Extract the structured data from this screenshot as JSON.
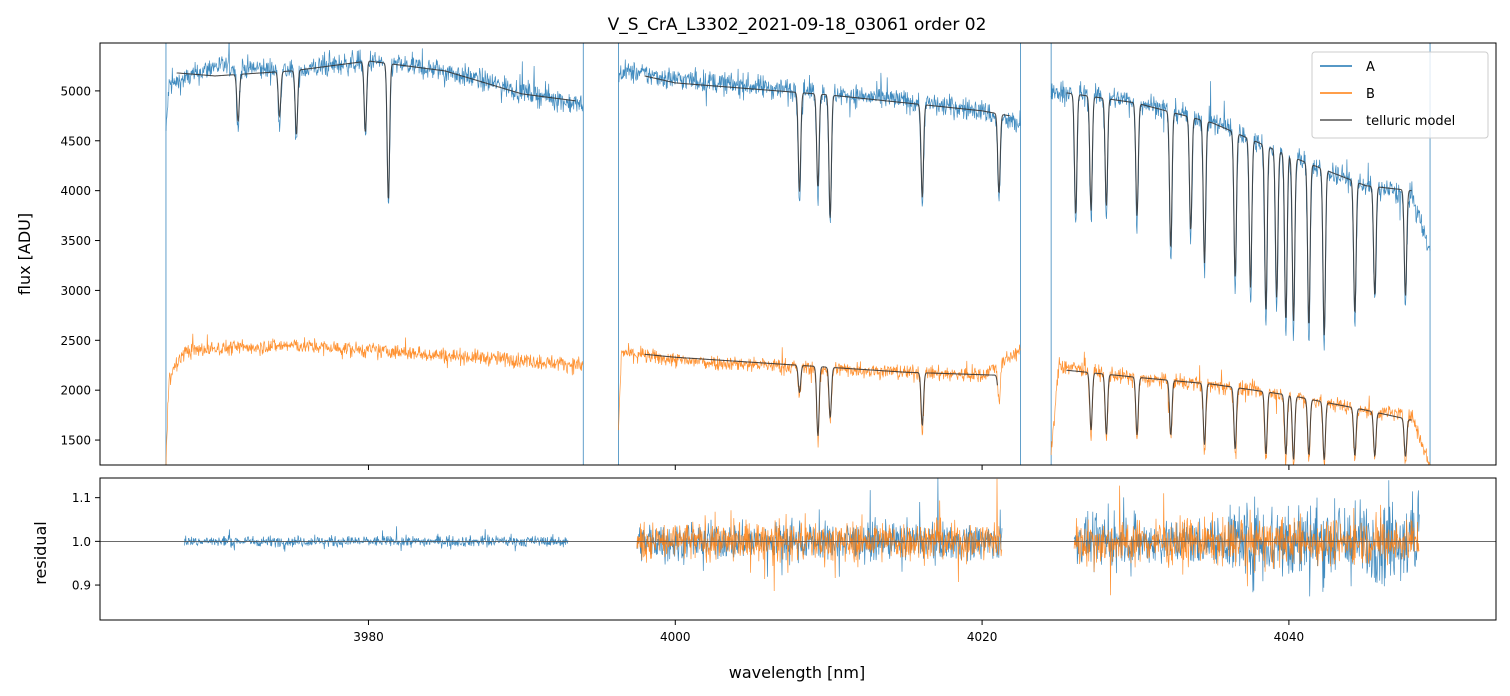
{
  "chart_data": [
    {
      "type": "line",
      "title": "V_S_CrA_L3302_2021-09-18_03061  order 02",
      "xlabel": "",
      "ylabel": "flux [ADU]",
      "xlim": [
        3962.5,
        4053.5
      ],
      "ylim": [
        1250,
        5480
      ],
      "x_ticks": [
        3980,
        4000,
        4020,
        4040
      ],
      "show_x_tick_labels": false,
      "y_ticks": [
        1500,
        2000,
        2500,
        3000,
        3500,
        4000,
        4500,
        5000
      ],
      "y_tick_labels": [
        "1500",
        "2000",
        "2500",
        "3000",
        "3500",
        "4000",
        "4500",
        "5000"
      ],
      "legend": {
        "position": "top-right",
        "entries": [
          {
            "label": "A",
            "color": "#1f77b4"
          },
          {
            "label": "B",
            "color": "#ff7f0e"
          },
          {
            "label": "telluric model",
            "color": "#555555"
          }
        ]
      },
      "series": [
        {
          "name": "A",
          "color": "#1f77b4",
          "segments": [
            {
              "x": [
                3966.8,
                3967,
                3970,
                3975,
                3980,
                3985,
                3990,
                3994
              ],
              "y": [
                4600,
                5050,
                5250,
                5200,
                5300,
                5200,
                5000,
                4850
              ]
            },
            {
              "x": [
                3996.3,
                3996.5,
                4000,
                4005,
                4010,
                4015,
                4020,
                4022.5
              ],
              "y": [
                5100,
                5200,
                5120,
                5050,
                4980,
                4900,
                4800,
                4650
              ]
            },
            {
              "x": [
                4024.5,
                4025,
                4030,
                4035,
                4040,
                4045,
                4048,
                4049.2
              ],
              "y": [
                4950,
                5000,
                4900,
                4700,
                4350,
                4050,
                3950,
                3400
              ]
            }
          ],
          "line_dips_wavelengths": [
            3971.5,
            3974.2,
            3975.3,
            3979.8,
            3981.3,
            4008.1,
            4009.3,
            4010.1,
            4016.1,
            4021.1,
            4026.1,
            4027.1,
            4028.1,
            4030.1,
            4032.3,
            4033.6,
            4034.5,
            4036.5,
            4037.5,
            4038.5,
            4039.2,
            4039.8,
            4040.3,
            4041.3,
            4042.3,
            4044.3,
            4045.6,
            4047.6
          ],
          "line_dips_min_flux": [
            4650,
            4700,
            4500,
            4520,
            3780,
            3900,
            3950,
            3620,
            3850,
            3900,
            3650,
            3700,
            3750,
            3650,
            3300,
            3500,
            3150,
            3000,
            2900,
            2650,
            2800,
            2550,
            2550,
            2500,
            2400,
            2650,
            2850,
            2850
          ]
        },
        {
          "name": "B",
          "color": "#ff7f0e",
          "segments": [
            {
              "x": [
                3966.8,
                3967,
                3968,
                3970,
                3975,
                3980,
                3985,
                3990,
                3994
              ],
              "y": [
                1250,
                2150,
                2380,
                2420,
                2450,
                2400,
                2350,
                2300,
                2250
              ]
            },
            {
              "x": [
                3996.3,
                3996.5,
                4000,
                4005,
                4010,
                4015,
                4020,
                4022.5
              ],
              "y": [
                1600,
                2380,
                2300,
                2260,
                2220,
                2180,
                2150,
                2400
              ]
            },
            {
              "x": [
                4024.5,
                4025,
                4030,
                4035,
                4040,
                4045,
                4048,
                4049.2
              ],
              "y": [
                1350,
                2250,
                2120,
                2050,
                1950,
                1800,
                1750,
                1250
              ]
            }
          ],
          "line_dips_wavelengths": [
            4008.1,
            4009.3,
            4010.1,
            4016.1,
            4021.1,
            4027.1,
            4028.1,
            4030.1,
            4032.3,
            4034.5,
            4036.5,
            4038.5,
            4039.8,
            4040.3,
            4041.3,
            4042.3,
            4044.3,
            4045.6,
            4047.6
          ],
          "line_dips_min_flux": [
            1950,
            1480,
            1680,
            1600,
            1900,
            1550,
            1500,
            1500,
            1500,
            1400,
            1350,
            1300,
            1300,
            1250,
            1300,
            1250,
            1300,
            1300,
            1300
          ]
        },
        {
          "name": "telluric model",
          "color": "#555555",
          "segments": [
            {
              "x": [
                3967.5,
                3970,
                3975,
                3980,
                3985,
                3990,
                3993.5
              ],
              "y": [
                5180,
                5150,
                5200,
                5300,
                5200,
                4970,
                4900
              ]
            },
            {
              "x": [
                3998,
                4000,
                4005,
                4010,
                4015,
                4020,
                4021.8
              ],
              "y": [
                5150,
                5080,
                5020,
                4960,
                4880,
                4800,
                4750
              ]
            },
            {
              "x": [
                4025.5,
                4030,
                4035,
                4040,
                4045,
                4048
              ],
              "y": [
                4980,
                4880,
                4680,
                4350,
                4050,
                4000
              ]
            },
            {
              "x": [
                3998,
                4000,
                4005,
                4010,
                4015,
                4021
              ],
              "y": [
                2360,
                2330,
                2280,
                2230,
                2180,
                2150
              ]
            },
            {
              "x": [
                4025.5,
                4030,
                4035,
                4040,
                4045,
                4048
              ],
              "y": [
                2200,
                2130,
                2060,
                1950,
                1800,
                1700
              ]
            }
          ]
        }
      ]
    },
    {
      "type": "line",
      "title": "",
      "xlabel": "wavelength [nm]",
      "ylabel": "residual",
      "xlim": [
        3962.5,
        4053.5
      ],
      "ylim": [
        0.82,
        1.145
      ],
      "x_ticks": [
        3980,
        4000,
        4020,
        4040
      ],
      "x_tick_labels": [
        "3980",
        "4000",
        "4020",
        "4040"
      ],
      "y_ticks": [
        0.9,
        1.0,
        1.1
      ],
      "y_tick_labels": [
        "0.9",
        "1.0",
        "1.1"
      ],
      "reference_line": 1.0,
      "series": [
        {
          "name": "A",
          "color": "#1f77b4",
          "segments": [
            {
              "x_range": [
                3968,
                3993
              ],
              "center": 1.0,
              "noise": 0.012
            },
            {
              "x_range": [
                3997.5,
                4021.3
              ],
              "center": 1.0,
              "noise": 0.04
            },
            {
              "x_range": [
                4026,
                4048.5
              ],
              "center": 1.0,
              "noise": 0.05
            }
          ]
        },
        {
          "name": "B",
          "color": "#ff7f0e",
          "segments": [
            {
              "x_range": [
                3997.5,
                4021.3
              ],
              "center": 1.0,
              "noise": 0.045
            },
            {
              "x_range": [
                4026,
                4048.5
              ],
              "center": 1.0,
              "noise": 0.05
            }
          ]
        }
      ]
    }
  ]
}
